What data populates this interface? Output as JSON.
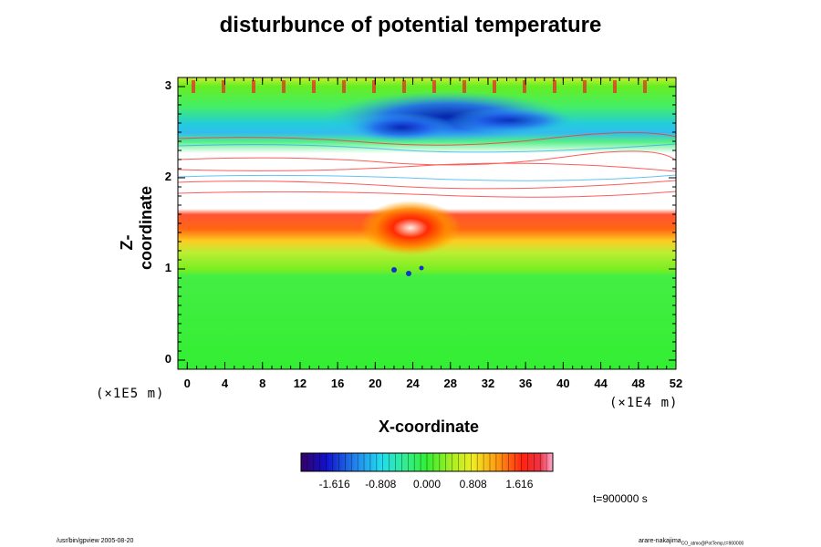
{
  "chart_data": {
    "type": "heatmap",
    "title": "disturbunce of potential temperature",
    "xlabel": "X-coordinate",
    "ylabel": "Z-coordinate",
    "x_unit": "(×1E4 m)",
    "y_unit": "(×1E5 m)",
    "x_ticks": [
      "0",
      "4",
      "8",
      "12",
      "16",
      "20",
      "24",
      "28",
      "32",
      "36",
      "40",
      "44",
      "48",
      "52"
    ],
    "y_ticks": [
      "0",
      "1",
      "2",
      "3"
    ],
    "xlim": [
      -1,
      52
    ],
    "ylim": [
      -0.1,
      3.1
    ],
    "colorbar": {
      "tick_labels": [
        "-1.616",
        "-0.808",
        "0.000",
        "0.808",
        "1.616"
      ],
      "min": -2.2,
      "max": 2.2,
      "colormap": "rainbow"
    },
    "field_description": "Green (~0) below z≈1; warm band (red) around z≈1.4–1.6 with red/white plume near x≈20–26; white (out of range) layers between z≈1.6 and z≈2.4; cyan/blue negative region z≈2.4–2.9 around x≈20–32; green/yellow near top boundary."
  },
  "annotations": {
    "time": "t=900000 s",
    "footer_left": "/usr/bin/gpview 2005-08-20",
    "footer_right_main": "arare-nakajima",
    "footer_right_sub": "CO_atmo@PotTemp,t=900000"
  },
  "colors": {
    "background": "#ffffff",
    "neutral_field": "#33ee33",
    "warm": "#ee2200",
    "cool": "#0022cc",
    "out_of_range": "#ffffff"
  }
}
